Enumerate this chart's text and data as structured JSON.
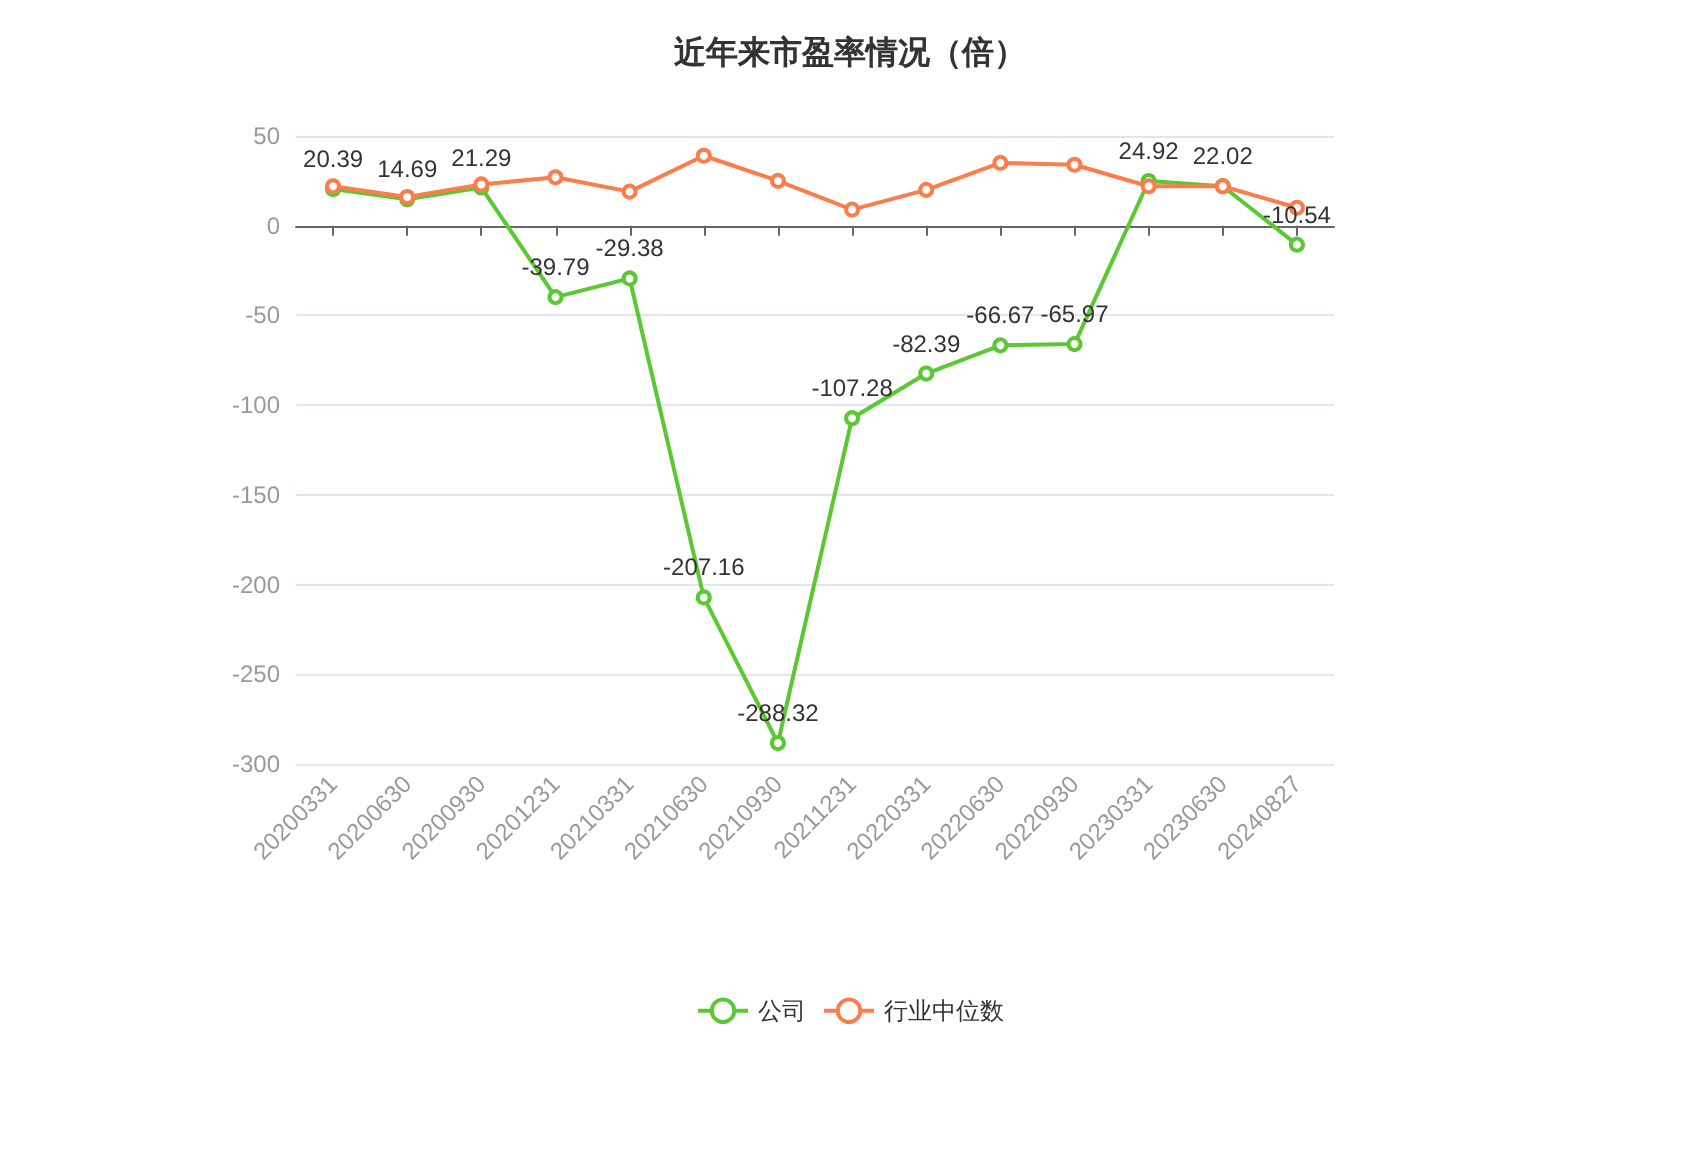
{
  "chart_data": {
    "type": "line",
    "title": "近年来市盈率情况（倍）",
    "categories": [
      "20200331",
      "20200630",
      "20200930",
      "20201231",
      "20210331",
      "20210630",
      "20210930",
      "20211231",
      "20220331",
      "20220630",
      "20220930",
      "20230331",
      "20230630",
      "20240827"
    ],
    "series": [
      {
        "name": "公司",
        "color": "#5ac832",
        "values": [
          20.39,
          14.69,
          21.29,
          -39.79,
          -29.38,
          -207.16,
          -288.32,
          -107.28,
          -82.39,
          -66.67,
          -65.97,
          24.92,
          22.02,
          -10.54
        ],
        "data_labels": true
      },
      {
        "name": "行业中位数",
        "color": "#fa7d4b",
        "values": [
          22,
          16,
          23,
          27,
          19,
          39,
          25,
          9,
          20,
          35,
          34,
          22,
          22,
          10
        ]
      }
    ],
    "ylim": [
      -300,
      50
    ],
    "yticks": [
      -300,
      -250,
      -200,
      -150,
      -100,
      -50,
      0,
      50
    ],
    "grid": "y",
    "legend": "bottom",
    "marker": "circle"
  }
}
